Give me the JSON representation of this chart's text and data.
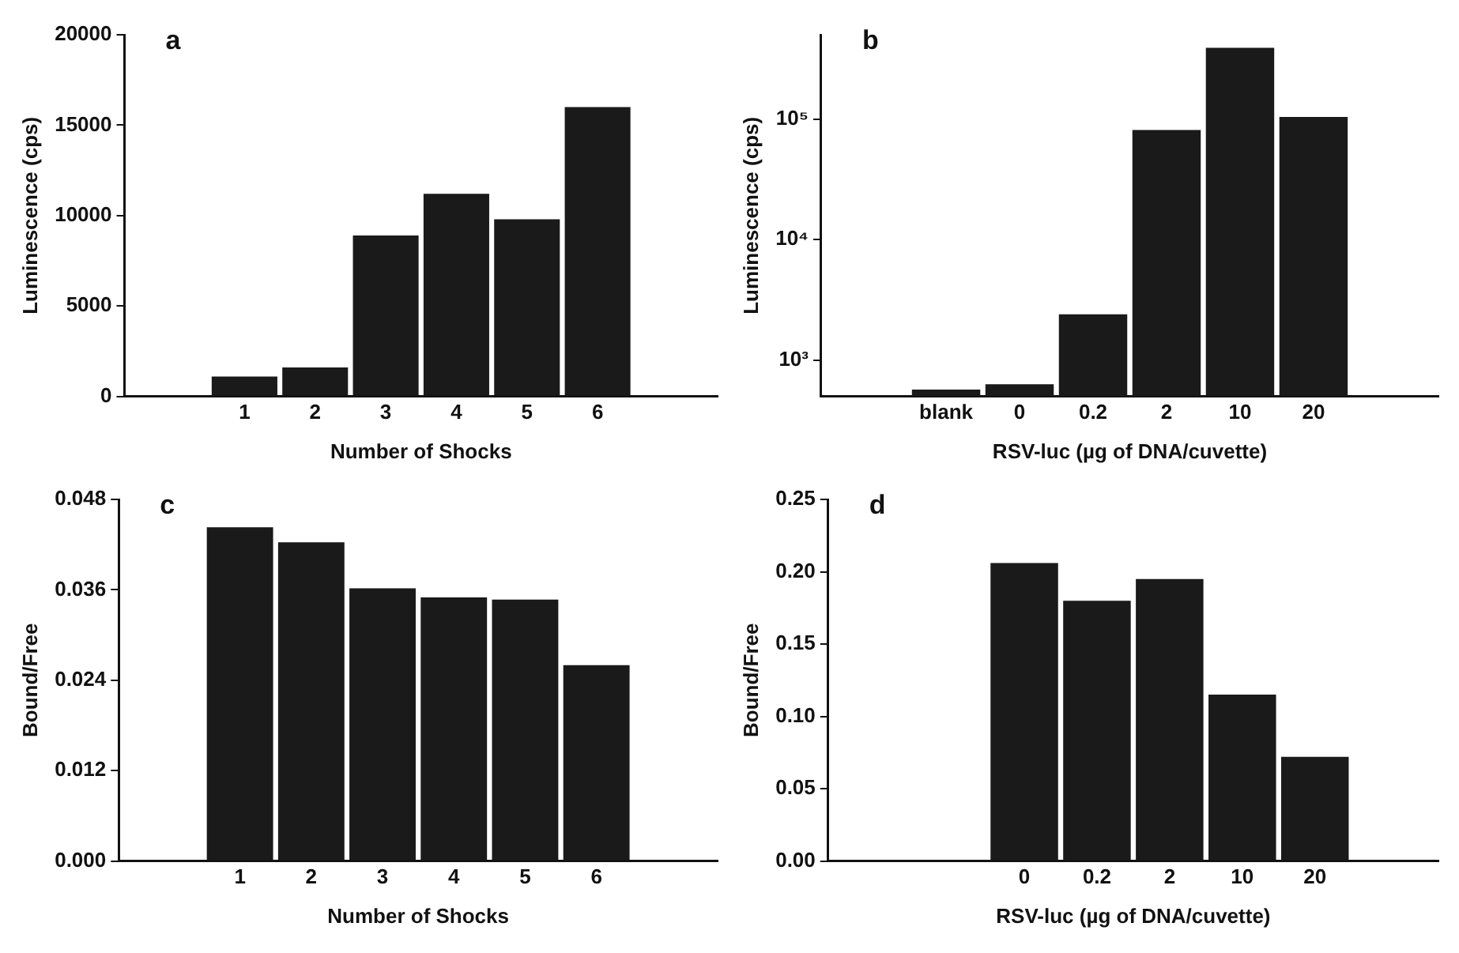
{
  "chart_data": [
    {
      "type": "bar",
      "title": "a",
      "xlabel": "Number of Shocks",
      "ylabel": "Luminescence (cps)",
      "categories": [
        "1",
        "2",
        "3",
        "4",
        "5",
        "6"
      ],
      "values": [
        1100,
        1600,
        8900,
        11200,
        9800,
        16000
      ],
      "color": "#1a1a1a",
      "ylim": [
        0,
        20000
      ],
      "yticks": [
        0,
        5000,
        10000,
        15000,
        20000
      ],
      "grid": false,
      "legend": false
    },
    {
      "type": "bar",
      "title": "b",
      "xlabel": "RSV-luc (µg of DNA/cuvette)",
      "ylabel": "Luminescence (cps)",
      "categories": [
        "blank",
        "0",
        "0.2",
        "2",
        "10",
        "20"
      ],
      "values": [
        570,
        630,
        2400,
        81000,
        390000,
        104000
      ],
      "color": "#1a1a1a",
      "log": "y",
      "ylim": [
        500,
        500000
      ],
      "yticks": [
        {
          "value": 1000,
          "label": "10³"
        },
        {
          "value": 10000,
          "label": "10⁴"
        },
        {
          "value": 100000,
          "label": "10⁵"
        }
      ],
      "grid": false,
      "legend": false
    },
    {
      "type": "bar",
      "title": "c",
      "xlabel": "Number of Shocks",
      "ylabel": "Bound/Free",
      "categories": [
        "1",
        "2",
        "3",
        "4",
        "5",
        "6"
      ],
      "values": [
        0.0443,
        0.0423,
        0.0362,
        0.035,
        0.0347,
        0.026
      ],
      "color": "#1a1a1a",
      "ylim": [
        0,
        0.048
      ],
      "yticks": [
        {
          "value": 0,
          "label": "0.000"
        },
        {
          "value": 0.012,
          "label": "0.012"
        },
        {
          "value": 0.024,
          "label": "0.024"
        },
        {
          "value": 0.036,
          "label": "0.036"
        },
        {
          "value": 0.048,
          "label": "0.048"
        }
      ],
      "grid": false,
      "legend": false
    },
    {
      "type": "bar",
      "title": "d",
      "xlabel": "RSV-luc (µg of DNA/cuvette)",
      "ylabel": "Bound/Free",
      "categories": [
        null,
        "0",
        "0.2",
        "2",
        "10",
        "20"
      ],
      "values": [
        null,
        0.206,
        0.18,
        0.195,
        0.115,
        0.072
      ],
      "color": "#1a1a1a",
      "ylim": [
        0,
        0.25
      ],
      "yticks": [
        {
          "value": 0,
          "label": "0.00"
        },
        {
          "value": 0.05,
          "label": "0.05"
        },
        {
          "value": 0.1,
          "label": "0.10"
        },
        {
          "value": 0.15,
          "label": "0.15"
        },
        {
          "value": 0.2,
          "label": "0.20"
        },
        {
          "value": 0.25,
          "label": "0.25"
        }
      ],
      "grid": false,
      "legend": false
    }
  ]
}
